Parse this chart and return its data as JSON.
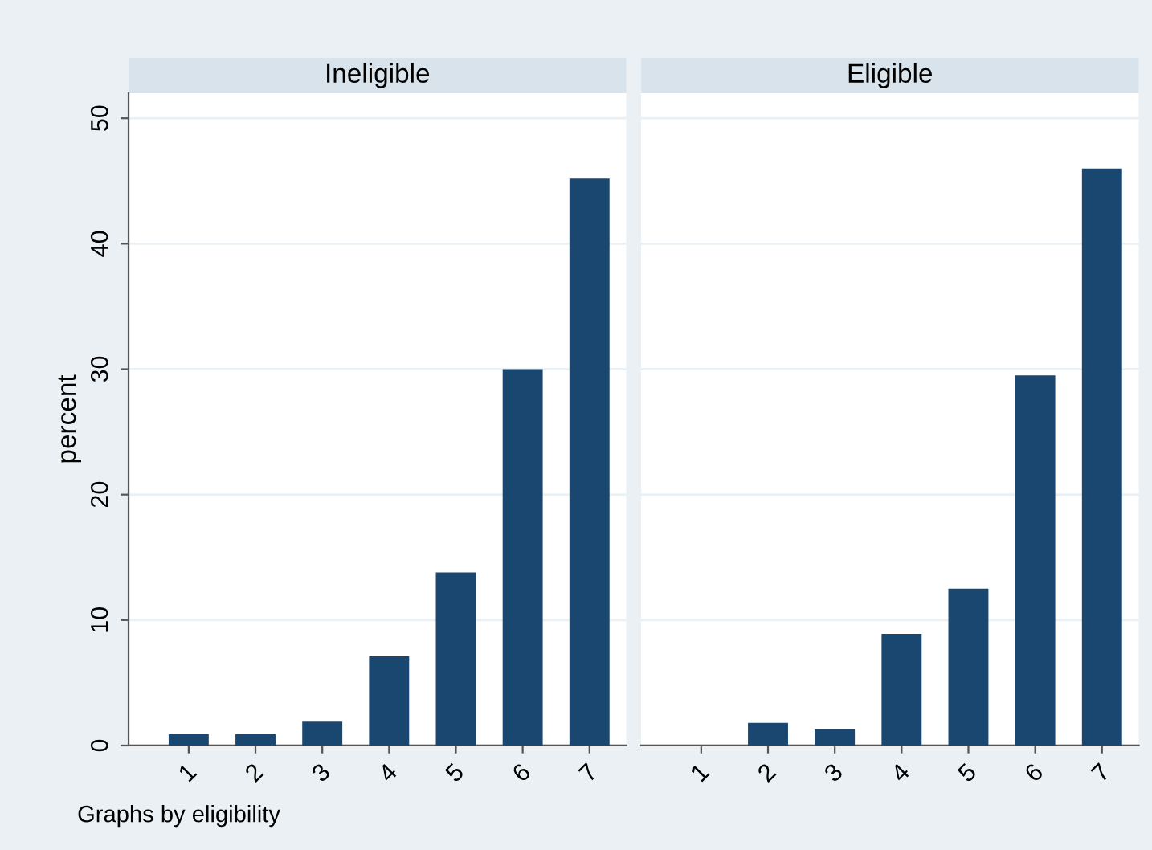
{
  "chart_data": [
    {
      "type": "bar",
      "title": "Ineligible",
      "ylabel": "percent",
      "categories": [
        "1",
        "2",
        "3",
        "4",
        "5",
        "6",
        "7"
      ],
      "values": [
        0.9,
        0.9,
        1.9,
        7.1,
        13.8,
        30.0,
        45.2
      ],
      "color": "#1a476f",
      "ylim": [
        0,
        52
      ],
      "yticks": [
        0,
        10,
        20,
        30,
        40,
        50
      ],
      "grid": "y",
      "annotations": [
        "Graphs by eligibility"
      ]
    },
    {
      "type": "bar",
      "title": "Eligible",
      "categories": [
        "1",
        "2",
        "3",
        "4",
        "5",
        "6",
        "7"
      ],
      "values": [
        0,
        1.8,
        1.3,
        8.9,
        12.5,
        29.5,
        46.0
      ],
      "color": "#1a476f",
      "ylim": [
        0,
        52
      ],
      "yticks": [
        0,
        10,
        20,
        30,
        40,
        50
      ],
      "grid": "y",
      "tick_labels": "x"
    }
  ]
}
